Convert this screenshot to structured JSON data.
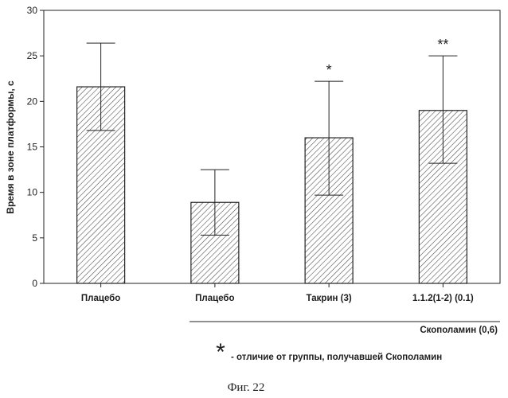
{
  "chart_data": {
    "type": "bar",
    "categories": [
      "Плацебо",
      "Плацебо",
      "Такрин (3)",
      "1.1.2(1-2) (0.1)"
    ],
    "values": [
      21.6,
      8.9,
      16.0,
      19.0
    ],
    "error_upper": [
      26.4,
      12.5,
      22.2,
      25.0
    ],
    "error_lower": [
      16.8,
      5.3,
      9.7,
      13.2
    ],
    "significance": [
      "",
      "",
      "*",
      "**"
    ],
    "ylabel": "Время в зоне платформы, с",
    "ylim": [
      0,
      30
    ],
    "yticks": [
      0,
      5,
      10,
      15,
      20,
      25,
      30
    ],
    "grid": false,
    "group_label": "Скополамин (0,6)",
    "note_marker": "*",
    "note_text": "- отличие от группы, получавшей Скополамин",
    "figure_caption": "Фиг. 22"
  }
}
